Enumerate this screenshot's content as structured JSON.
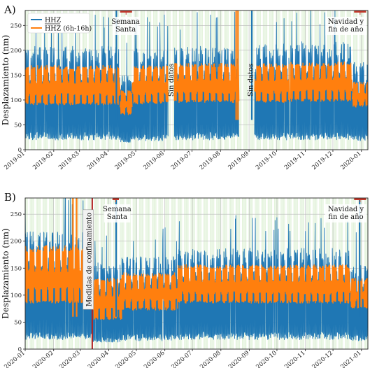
{
  "chart_data": [
    {
      "panel_label": "A)",
      "type": "line",
      "ylabel": "Desplazamiento (nm)",
      "ylim": [
        0,
        280
      ],
      "yticks": [
        0,
        50,
        100,
        150,
        200,
        250
      ],
      "xlim": [
        "2019-01-01",
        "2020-01-08"
      ],
      "xticks": [
        "2019-01",
        "2019-02",
        "2019-03",
        "2019-04",
        "2019-05",
        "2019-06",
        "2019-07",
        "2019-08",
        "2019-09",
        "2019-10",
        "2019-11",
        "2019-12",
        "2020-01"
      ],
      "grid": true,
      "legend": {
        "placement": "top-left",
        "entries": [
          "HHZ",
          "HHZ (6h-16h)"
        ]
      },
      "series": [
        {
          "name": "HHZ",
          "color": "#1f77b4",
          "style": "daily-oscillation",
          "segments": [
            {
              "start": "2019-01-01",
              "end": "2019-04-14",
              "low": 28,
              "high": 200
            },
            {
              "start": "2019-04-14",
              "end": "2019-04-27",
              "low": 20,
              "high": 150
            },
            {
              "start": "2019-04-27",
              "end": "2019-06-05",
              "low": 25,
              "high": 195
            },
            {
              "start": "2019-06-12",
              "end": "2019-08-21",
              "low": 28,
              "high": 200
            },
            {
              "start": "2019-09-07",
              "end": "2019-10-15",
              "low": 28,
              "high": 205
            },
            {
              "start": "2019-10-16",
              "end": "2019-12-22",
              "low": 28,
              "high": 210
            },
            {
              "start": "2019-12-22",
              "end": "2020-01-08",
              "low": 25,
              "high": 170
            }
          ]
        },
        {
          "name": "HHZ (6h-16h)",
          "color": "#ff7f0e",
          "style": "daily-envelope",
          "segments": [
            {
              "start": "2019-01-01",
              "end": "2019-04-14",
              "low": 90,
              "high": 168
            },
            {
              "start": "2019-04-14",
              "end": "2019-04-27",
              "low": 70,
              "high": 118
            },
            {
              "start": "2019-04-27",
              "end": "2019-06-05",
              "low": 92,
              "high": 168
            },
            {
              "start": "2019-06-12",
              "end": "2019-08-21",
              "low": 95,
              "high": 172
            },
            {
              "start": "2019-09-07",
              "end": "2019-10-15",
              "low": 95,
              "high": 172
            },
            {
              "start": "2019-10-16",
              "end": "2019-12-22",
              "low": 97,
              "high": 175
            },
            {
              "start": "2019-12-22",
              "end": "2020-01-08",
              "low": 85,
              "high": 135
            }
          ]
        }
      ],
      "spikes": [
        {
          "x": "2019-08-18",
          "y": 280,
          "color": "#ff7f0e"
        },
        {
          "x": "2019-08-20",
          "y": 280,
          "color": "#ff7f0e"
        },
        {
          "x": "2019-04-10",
          "y": 280,
          "color": "#1f77b4"
        },
        {
          "x": "2019-09-04",
          "y": 280,
          "color": "#1f77b4"
        }
      ],
      "annotations": [
        {
          "x": "2019-06-08",
          "y": 140,
          "text": "Sin datos",
          "rotation": -90
        },
        {
          "x": "2019-09-02",
          "y": 140,
          "text": "Sin datos",
          "rotation": -90
        },
        {
          "x": "2019-04-20",
          "y": 250,
          "text": [
            "Semana",
            "Santa"
          ],
          "range": [
            "2019-04-14",
            "2019-04-27"
          ]
        },
        {
          "x": "2019-12-26",
          "y": 250,
          "text": [
            "Navidad y",
            "fin de año"
          ],
          "range": [
            "2019-12-24",
            "2020-01-06"
          ]
        }
      ]
    },
    {
      "panel_label": "B)",
      "type": "line",
      "ylabel": "Desplazamiento (nm)",
      "ylim": [
        0,
        280
      ],
      "yticks": [
        0,
        50,
        100,
        150,
        200,
        250
      ],
      "xlim": [
        "2020-01-01",
        "2021-01-08"
      ],
      "xticks": [
        "2020-01",
        "2020-02",
        "2020-03",
        "2020-04",
        "2020-05",
        "2020-06",
        "2020-07",
        "2020-08",
        "2020-09",
        "2020-10",
        "2020-11",
        "2020-12",
        "2021-01"
      ],
      "grid": true,
      "series": [
        {
          "name": "HHZ",
          "color": "#1f77b4",
          "style": "daily-oscillation",
          "segments": [
            {
              "start": "2020-01-01",
              "end": "2020-03-14",
              "low": 25,
              "high": 210
            },
            {
              "start": "2020-03-14",
              "end": "2020-04-15",
              "low": 18,
              "high": 155
            },
            {
              "start": "2020-04-15",
              "end": "2020-06-15",
              "low": 22,
              "high": 165
            },
            {
              "start": "2020-06-15",
              "end": "2020-12-20",
              "low": 25,
              "high": 180
            },
            {
              "start": "2020-12-20",
              "end": "2021-01-08",
              "low": 22,
              "high": 150
            }
          ]
        },
        {
          "name": "HHZ (6h-16h)",
          "color": "#ff7f0e",
          "style": "daily-envelope",
          "segments": [
            {
              "start": "2020-01-01",
              "end": "2020-03-14",
              "low": 85,
              "high": 190
            },
            {
              "start": "2020-03-14",
              "end": "2020-04-15",
              "low": 55,
              "high": 130
            },
            {
              "start": "2020-04-15",
              "end": "2020-06-15",
              "low": 72,
              "high": 140
            },
            {
              "start": "2020-06-15",
              "end": "2020-12-20",
              "low": 85,
              "high": 155
            },
            {
              "start": "2020-12-20",
              "end": "2021-01-08",
              "low": 75,
              "high": 130
            }
          ]
        }
      ],
      "spikes": [
        {
          "x": "2020-02-22",
          "y": 280,
          "color": "#ff7f0e"
        },
        {
          "x": "2020-02-26",
          "y": 280,
          "color": "#ff7f0e"
        },
        {
          "x": "2020-04-09",
          "y": 280,
          "color": "#1f77b4"
        },
        {
          "x": "2020-12-30",
          "y": 280,
          "color": "#1f77b4"
        }
      ],
      "vlines": [
        {
          "x": "2020-03-14",
          "color": "#b22222"
        }
      ],
      "annotations": [
        {
          "x": "2020-03-10",
          "y": 140,
          "text": "Medidas de confinamiento",
          "rotation": -90
        },
        {
          "x": "2020-04-10",
          "y": 250,
          "text": [
            "Semana",
            "Santa"
          ],
          "range": [
            "2020-04-05",
            "2020-04-12"
          ]
        },
        {
          "x": "2020-12-26",
          "y": 250,
          "text": [
            "Navidad y",
            "fin de año"
          ],
          "range": [
            "2020-12-24",
            "2021-01-06"
          ]
        }
      ]
    }
  ]
}
